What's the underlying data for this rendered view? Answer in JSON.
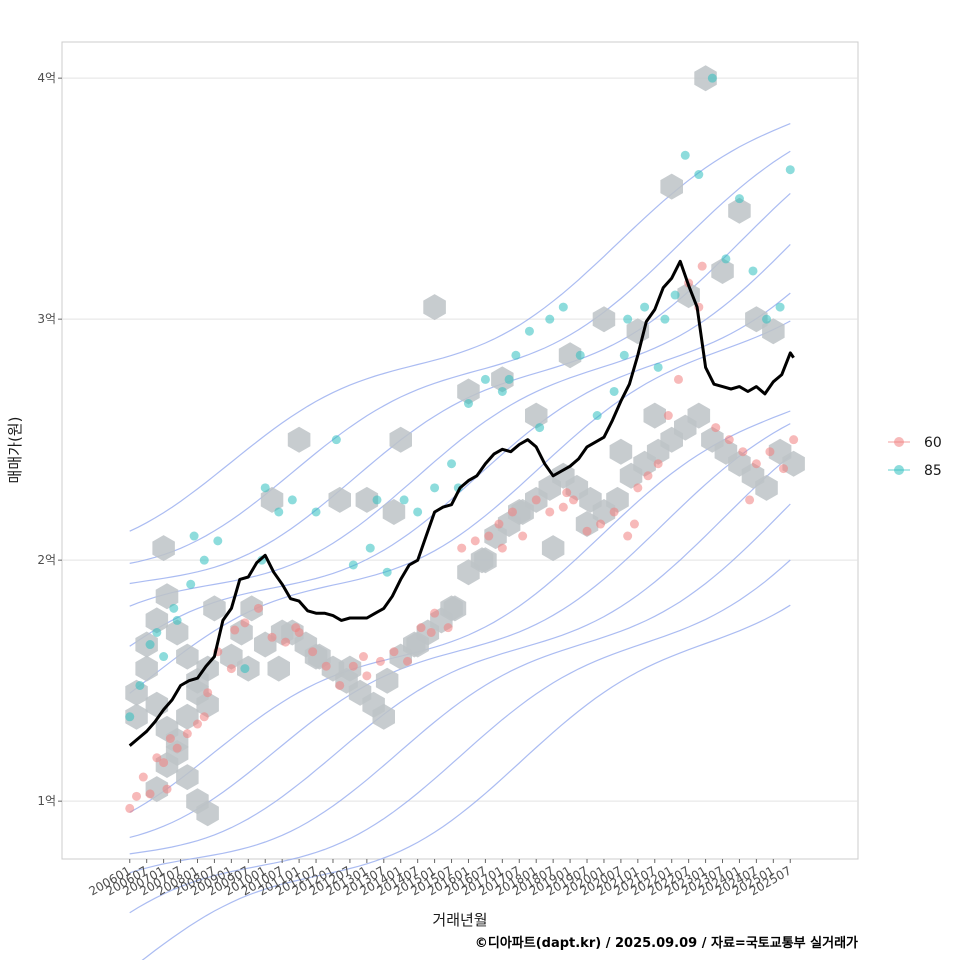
{
  "chart_data": {
    "type": "scatter",
    "title": "",
    "xlabel": "거래년월",
    "ylabel": "매매가(원)",
    "caption": "©디아파트(dapt.kr) / 2025.09.09 / 자료=국토교통부 실거래가",
    "y_ticks": [
      {
        "value": 1,
        "label": "1억"
      },
      {
        "value": 2,
        "label": "2억"
      },
      {
        "value": 3,
        "label": "3억"
      },
      {
        "value": 4,
        "label": "4억"
      }
    ],
    "x_ticks": [
      "200601",
      "200607",
      "200701",
      "200707",
      "200801",
      "200807",
      "200901",
      "200907",
      "201001",
      "201007",
      "201101",
      "201107",
      "201201",
      "201207",
      "201301",
      "201307",
      "201401",
      "201407",
      "201501",
      "201507",
      "201601",
      "201607",
      "201701",
      "201707",
      "201801",
      "201807",
      "201901",
      "201907",
      "202001",
      "202007",
      "202101",
      "202107",
      "202201",
      "202207",
      "202301",
      "202307",
      "202401",
      "202407",
      "202501",
      "202507"
    ],
    "xlim": [
      2004.0,
      2027.5
    ],
    "ylim": [
      0.76,
      4.15
    ],
    "legend": {
      "position": "right",
      "entries": [
        {
          "label": "60",
          "color": "#f08080"
        },
        {
          "label": "85",
          "color": "#30c0c0"
        }
      ]
    },
    "colors": {
      "median_line": "#000000",
      "hex_fill": "#bdc3c7",
      "contour": "#8fa5ee",
      "series_60": "#f08080",
      "series_85": "#30c0c0"
    },
    "median_series": {
      "name": "median",
      "x": [
        2006.0,
        2006.25,
        2006.5,
        2006.75,
        2007.0,
        2007.25,
        2007.5,
        2007.75,
        2008.0,
        2008.25,
        2008.5,
        2008.75,
        2009.0,
        2009.25,
        2009.5,
        2009.75,
        2010.0,
        2010.25,
        2010.5,
        2010.75,
        2011.0,
        2011.25,
        2011.5,
        2011.75,
        2012.0,
        2012.25,
        2012.5,
        2012.75,
        2013.0,
        2013.25,
        2013.5,
        2013.75,
        2014.0,
        2014.25,
        2014.5,
        2014.75,
        2015.0,
        2015.25,
        2015.5,
        2015.75,
        2016.0,
        2016.25,
        2016.5,
        2016.75,
        2017.0,
        2017.25,
        2017.5,
        2017.75,
        2018.0,
        2018.25,
        2018.5,
        2018.75,
        2019.0,
        2019.25,
        2019.5,
        2019.75,
        2020.0,
        2020.25,
        2020.5,
        2020.75,
        2021.0,
        2021.25,
        2021.5,
        2021.75,
        2022.0,
        2022.25,
        2022.5,
        2022.75,
        2023.0,
        2023.25,
        2023.5,
        2023.75,
        2024.0,
        2024.25,
        2024.5,
        2024.75,
        2025.0,
        2025.25,
        2025.5,
        2025.6
      ],
      "values": [
        1.23,
        1.26,
        1.29,
        1.33,
        1.38,
        1.42,
        1.48,
        1.5,
        1.51,
        1.56,
        1.6,
        1.75,
        1.8,
        1.92,
        1.93,
        1.99,
        2.02,
        1.95,
        1.9,
        1.84,
        1.83,
        1.79,
        1.78,
        1.78,
        1.77,
        1.75,
        1.76,
        1.76,
        1.76,
        1.78,
        1.8,
        1.85,
        1.92,
        1.98,
        2.0,
        2.1,
        2.2,
        2.22,
        2.23,
        2.3,
        2.33,
        2.35,
        2.4,
        2.44,
        2.46,
        2.45,
        2.48,
        2.5,
        2.47,
        2.4,
        2.35,
        2.37,
        2.39,
        2.42,
        2.47,
        2.49,
        2.51,
        2.58,
        2.66,
        2.73,
        2.85,
        2.99,
        3.04,
        3.13,
        3.17,
        3.24,
        3.14,
        3.05,
        2.8,
        2.73,
        2.72,
        2.71,
        2.72,
        2.7,
        2.72,
        2.69,
        2.74,
        2.77,
        2.86,
        2.84
      ]
    },
    "series": [
      {
        "name": "60",
        "x": [
          2006.0,
          2006.2,
          2006.4,
          2006.6,
          2006.8,
          2007.0,
          2007.2,
          2007.4,
          2007.7,
          2008.0,
          2008.3,
          2008.6,
          2009.1,
          2009.4,
          2009.8,
          2010.2,
          2010.6,
          2011.0,
          2011.4,
          2011.8,
          2012.2,
          2012.6,
          2013.0,
          2013.4,
          2013.8,
          2014.2,
          2014.6,
          2015.0,
          2015.4,
          2015.8,
          2016.2,
          2016.6,
          2017.0,
          2017.3,
          2017.6,
          2018.0,
          2018.4,
          2018.8,
          2019.1,
          2019.5,
          2019.9,
          2020.3,
          2020.7,
          2021.0,
          2021.3,
          2021.6,
          2021.9,
          2022.2,
          2022.5,
          2022.9,
          2023.3,
          2023.7,
          2024.1,
          2024.5,
          2024.9,
          2025.3,
          2025.6,
          2007.1,
          2008.2,
          2009.0,
          2010.9,
          2012.9,
          2014.9,
          2016.9,
          2018.9,
          2020.9,
          2022.8,
          2024.3
        ],
        "values": [
          0.97,
          1.02,
          1.1,
          1.03,
          1.18,
          1.16,
          1.26,
          1.22,
          1.28,
          1.32,
          1.45,
          1.62,
          1.71,
          1.74,
          1.8,
          1.68,
          1.66,
          1.7,
          1.62,
          1.56,
          1.48,
          1.56,
          1.52,
          1.58,
          1.62,
          1.58,
          1.72,
          1.78,
          1.72,
          2.05,
          2.08,
          2.1,
          2.05,
          2.2,
          2.1,
          2.25,
          2.2,
          2.22,
          2.25,
          2.12,
          2.15,
          2.2,
          2.1,
          2.3,
          2.35,
          2.4,
          2.6,
          2.75,
          3.15,
          3.22,
          2.55,
          2.5,
          2.45,
          2.4,
          2.45,
          2.38,
          2.5,
          1.05,
          1.35,
          1.55,
          1.72,
          1.6,
          1.7,
          2.15,
          2.28,
          2.15,
          3.05,
          2.25
        ]
      },
      {
        "name": "85",
        "x": [
          2006.0,
          2006.3,
          2006.6,
          2007.0,
          2007.4,
          2007.8,
          2008.2,
          2008.6,
          2009.4,
          2010.0,
          2010.4,
          2010.8,
          2011.5,
          2012.1,
          2012.6,
          2013.1,
          2013.6,
          2014.1,
          2014.5,
          2015.0,
          2015.5,
          2016.0,
          2016.5,
          2017.0,
          2017.4,
          2017.8,
          2018.4,
          2018.8,
          2019.3,
          2019.8,
          2020.3,
          2020.7,
          2021.2,
          2021.6,
          2022.1,
          2022.4,
          2022.8,
          2023.2,
          2023.6,
          2024.0,
          2024.4,
          2024.8,
          2025.2,
          2025.5,
          2006.8,
          2007.3,
          2007.9,
          2009.9,
          2013.3,
          2015.7,
          2017.2,
          2018.1,
          2020.6,
          2021.8
        ],
        "values": [
          1.35,
          1.48,
          1.65,
          1.6,
          1.75,
          1.9,
          2.0,
          2.08,
          1.55,
          2.3,
          2.2,
          2.25,
          2.2,
          2.5,
          1.98,
          2.05,
          1.95,
          2.25,
          2.2,
          2.3,
          2.4,
          2.65,
          2.75,
          2.7,
          2.85,
          2.95,
          3.0,
          3.05,
          2.85,
          2.6,
          2.7,
          3.0,
          3.05,
          2.8,
          3.1,
          3.68,
          3.6,
          4.0,
          3.25,
          3.5,
          3.2,
          3.0,
          3.05,
          3.62,
          1.7,
          1.8,
          2.1,
          2.0,
          2.25,
          2.3,
          2.75,
          2.55,
          2.85,
          3.0
        ]
      }
    ],
    "hex_bins": {
      "x": [
        2006.2,
        2006.5,
        2006.8,
        2007.1,
        2007.4,
        2007.7,
        2008.0,
        2008.3,
        2006.5,
        2006.8,
        2007.1,
        2007.4,
        2007.7,
        2008.0,
        2008.3,
        2006.8,
        2007.1,
        2007.4,
        2007.7,
        2008.0,
        2008.3,
        2009.0,
        2009.3,
        2009.6,
        2010.0,
        2010.4,
        2010.8,
        2011.2,
        2011.6,
        2012.0,
        2012.4,
        2012.8,
        2013.2,
        2013.6,
        2014.0,
        2014.4,
        2014.8,
        2015.2,
        2015.6,
        2016.0,
        2016.4,
        2016.8,
        2017.2,
        2017.6,
        2018.0,
        2018.4,
        2018.8,
        2019.2,
        2019.6,
        2020.0,
        2020.4,
        2020.8,
        2021.2,
        2021.6,
        2022.0,
        2022.4,
        2022.8,
        2023.2,
        2023.6,
        2024.0,
        2024.4,
        2024.8,
        2025.2,
        2025.6,
        2006.2,
        2007.0,
        2008.5,
        2009.5,
        2010.5,
        2011.5,
        2012.5,
        2013.5,
        2014.5,
        2015.5,
        2016.5,
        2017.5,
        2018.5,
        2019.5,
        2020.5,
        2021.5,
        2022.5,
        2023.5,
        2024.5,
        2025.0,
        2015.0,
        2017.0,
        2019.0,
        2021.0,
        2023.0,
        2014.0,
        2016.0,
        2018.0,
        2020.0,
        2022.0,
        2024.0,
        2010.2,
        2011.0,
        2012.2,
        2013.0,
        2013.8
      ],
      "values": [
        1.45,
        1.55,
        1.4,
        1.3,
        1.2,
        1.1,
        1.0,
        0.95,
        1.65,
        1.75,
        1.85,
        1.7,
        1.6,
        1.5,
        1.4,
        1.05,
        1.15,
        1.25,
        1.35,
        1.45,
        1.55,
        1.6,
        1.7,
        1.8,
        1.65,
        1.55,
        1.7,
        1.65,
        1.6,
        1.55,
        1.5,
        1.45,
        1.4,
        1.5,
        1.6,
        1.65,
        1.7,
        1.75,
        1.8,
        1.95,
        2.0,
        2.1,
        2.15,
        2.2,
        2.25,
        2.3,
        2.35,
        2.3,
        2.25,
        2.2,
        2.25,
        2.35,
        2.4,
        2.45,
        2.5,
        2.55,
        2.6,
        2.5,
        2.45,
        2.4,
        2.35,
        2.3,
        2.45,
        2.4,
        1.35,
        2.05,
        1.8,
        1.55,
        1.7,
        1.6,
        1.55,
        1.35,
        1.65,
        1.8,
        2.0,
        2.2,
        2.05,
        2.15,
        2.45,
        2.6,
        3.1,
        3.2,
        3.0,
        2.95,
        3.05,
        2.75,
        2.85,
        2.95,
        4.0,
        2.5,
        2.7,
        2.6,
        3.0,
        3.55,
        3.45,
        2.25,
        2.5,
        2.25,
        2.25,
        2.2
      ]
    },
    "grid": true
  }
}
